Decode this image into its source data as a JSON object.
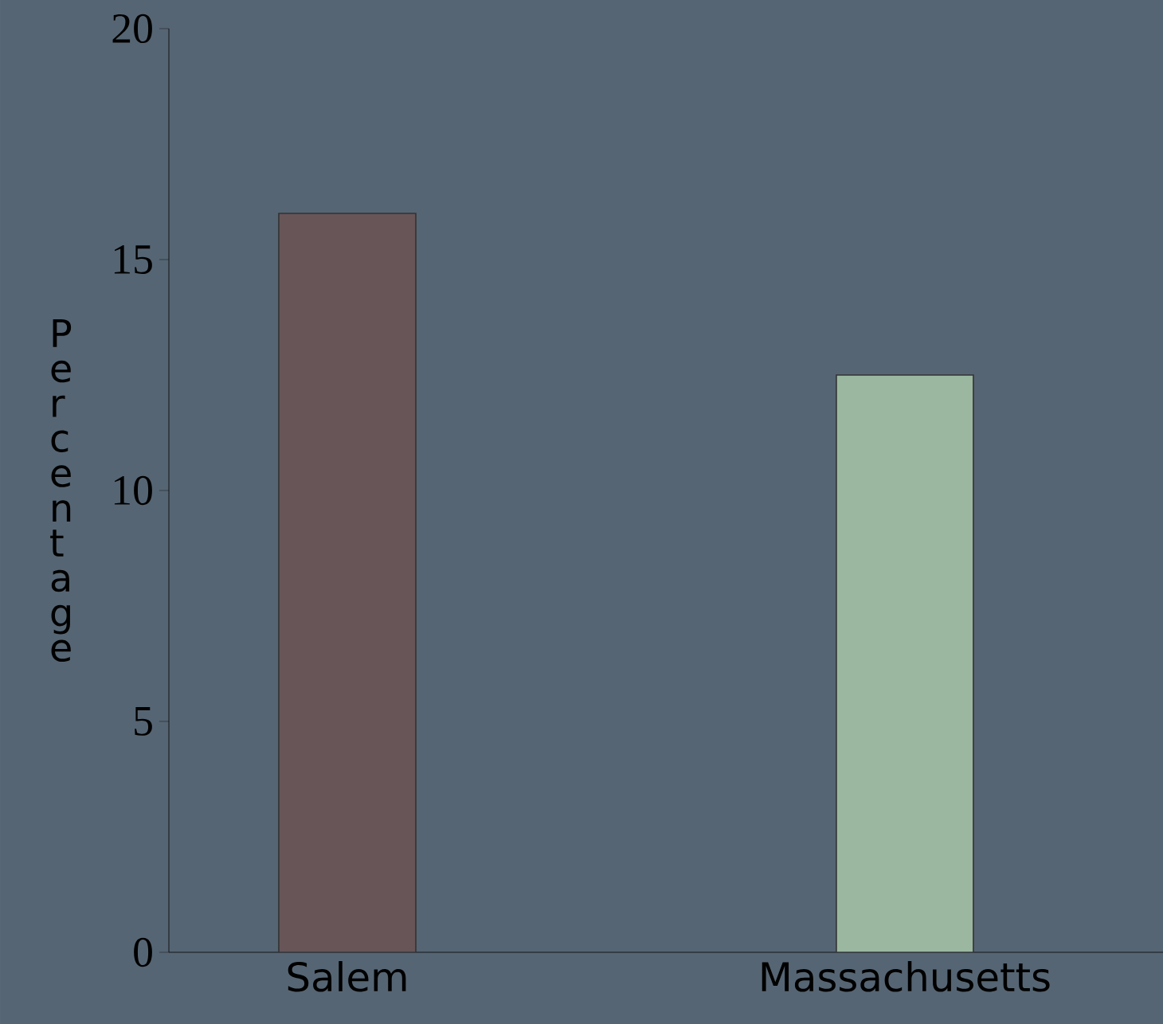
{
  "chart_data": {
    "type": "bar",
    "ylabel": "Percentage",
    "categories": [
      "Salem",
      "Massachusetts"
    ],
    "values": [
      16,
      12.5
    ],
    "colors": [
      "#675558",
      "#9bb7a0"
    ],
    "ylim": [
      0,
      20
    ],
    "yticks": [
      0,
      5,
      10,
      15,
      20
    ]
  }
}
